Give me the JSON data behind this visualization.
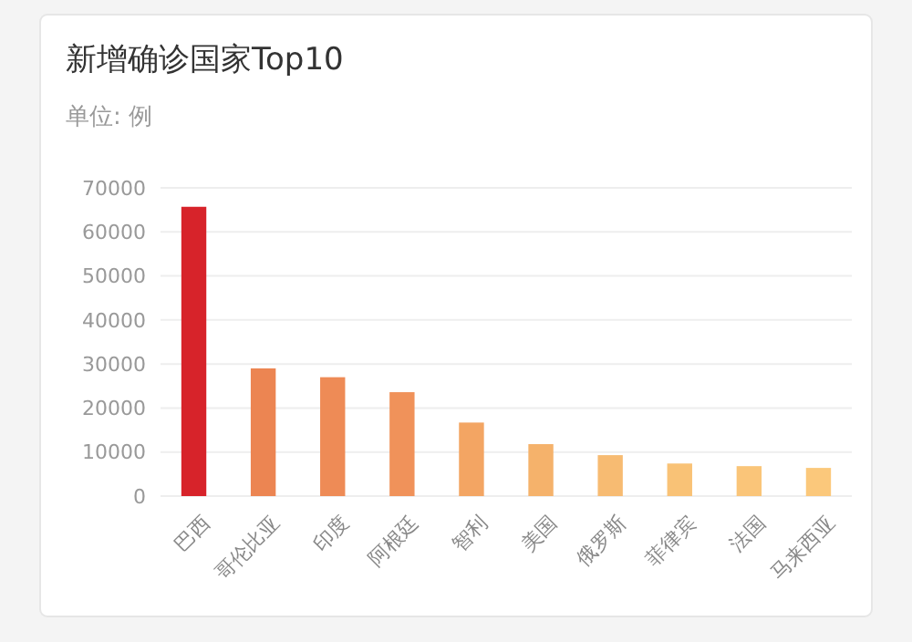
{
  "chart_data": {
    "type": "bar",
    "title": "新增确诊国家Top10",
    "subtitle": "单位: 例",
    "categories": [
      "巴西",
      "哥伦比亚",
      "印度",
      "阿根廷",
      "智利",
      "美国",
      "俄罗斯",
      "菲律宾",
      "法国",
      "马来西亚"
    ],
    "values": [
      65700,
      29000,
      27000,
      23600,
      16700,
      11800,
      9300,
      7400,
      6800,
      6400
    ],
    "colors": [
      "#d7232a",
      "#ec8552",
      "#ee8b56",
      "#f0925a",
      "#f3a563",
      "#f5b26b",
      "#f7bb72",
      "#f9c276",
      "#fac579",
      "#fbc87b"
    ],
    "ylim": [
      0,
      70000
    ],
    "yticks": [
      0,
      10000,
      20000,
      30000,
      40000,
      50000,
      60000,
      70000
    ],
    "grid": "y"
  }
}
